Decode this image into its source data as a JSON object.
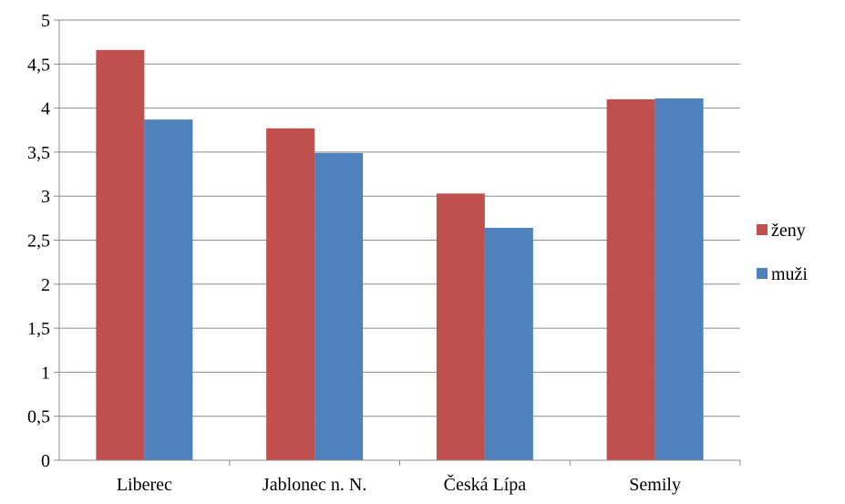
{
  "chart_data": {
    "type": "bar",
    "title": "",
    "xlabel": "",
    "ylabel": "",
    "categories": [
      "Liberec",
      "Jablonec n. N.",
      "Česká Lípa",
      "Semily"
    ],
    "series": [
      {
        "name": "ženy",
        "color": "#C0504D",
        "values": [
          4.66,
          3.77,
          3.03,
          4.1
        ]
      },
      {
        "name": "muži",
        "color": "#4F81BD",
        "values": [
          3.87,
          3.49,
          2.64,
          4.11
        ]
      }
    ],
    "ylim": [
      0,
      5
    ],
    "yticks": [
      "0",
      "0,5",
      "1",
      "1,5",
      "2",
      "2,5",
      "3",
      "3,5",
      "4",
      "4,5",
      "5"
    ],
    "grid": true,
    "legend_position": "right"
  }
}
